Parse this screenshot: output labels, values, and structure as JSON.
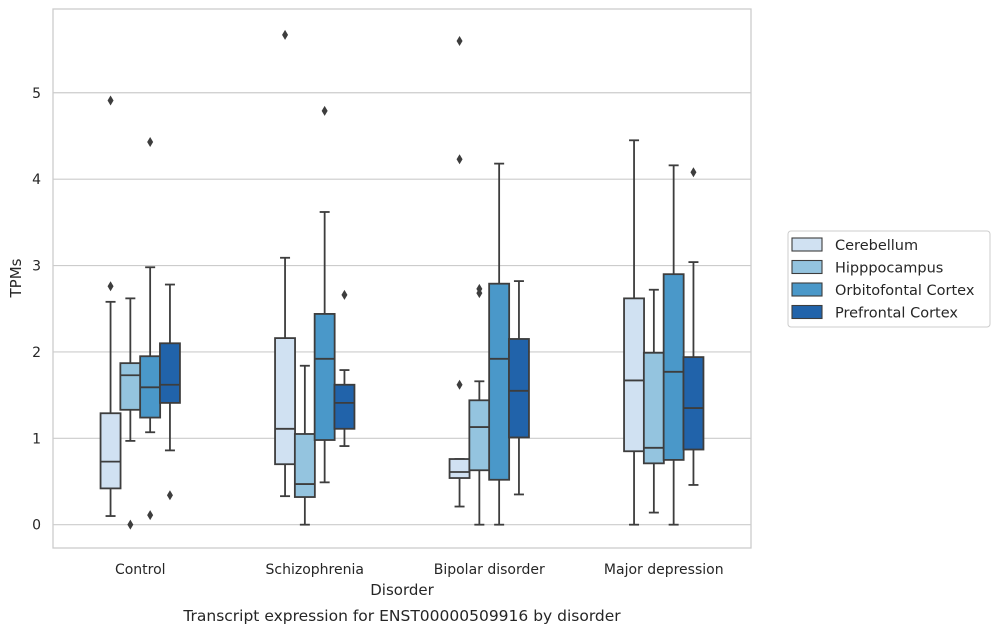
{
  "chart_data": {
    "type": "boxplot",
    "caption": "Transcript expression for ENST00000509916 by disorder",
    "xlabel": "Disorder",
    "ylabel": "TPMs",
    "ylim": [
      -0.27,
      5.97
    ],
    "yticks": [
      0,
      1,
      2,
      3,
      4,
      5
    ],
    "grid": "horizontal",
    "legend_position": "right",
    "categories": [
      "Control",
      "Schizophrenia",
      "Bipolar disorder",
      "Major depression"
    ],
    "series": [
      {
        "name": "Cerebellum",
        "color": "#d0e1f2",
        "boxes": [
          {
            "whislo": 0.1,
            "q1": 0.42,
            "med": 0.73,
            "q3": 1.29,
            "whishi": 2.58,
            "fliers": [
              2.76,
              4.91
            ]
          },
          {
            "whislo": 0.33,
            "q1": 0.7,
            "med": 1.11,
            "q3": 2.16,
            "whishi": 3.09,
            "fliers": [
              5.67
            ]
          },
          {
            "whislo": 0.21,
            "q1": 0.54,
            "med": 0.61,
            "q3": 0.76,
            "whishi": 0.76,
            "fliers": [
              1.62,
              4.23,
              5.6
            ]
          },
          {
            "whislo": 0.0,
            "q1": 0.85,
            "med": 1.67,
            "q3": 2.62,
            "whishi": 4.45,
            "fliers": []
          }
        ]
      },
      {
        "name": "Hipppocampus",
        "color": "#94c4df",
        "boxes": [
          {
            "whislo": 0.97,
            "q1": 1.33,
            "med": 1.73,
            "q3": 1.87,
            "whishi": 2.62,
            "fliers": [
              0.0
            ]
          },
          {
            "whislo": 0.0,
            "q1": 0.32,
            "med": 0.47,
            "q3": 1.05,
            "whishi": 1.84,
            "fliers": []
          },
          {
            "whislo": 0.0,
            "q1": 0.63,
            "med": 1.13,
            "q3": 1.44,
            "whishi": 1.66,
            "fliers": [
              2.68,
              2.73
            ]
          },
          {
            "whislo": 0.14,
            "q1": 0.71,
            "med": 0.89,
            "q3": 1.99,
            "whishi": 2.72,
            "fliers": []
          }
        ]
      },
      {
        "name": "Orbitofontal Cortex",
        "color": "#4a98c9",
        "boxes": [
          {
            "whislo": 1.07,
            "q1": 1.24,
            "med": 1.59,
            "q3": 1.95,
            "whishi": 2.98,
            "fliers": [
              0.11,
              4.43
            ]
          },
          {
            "whislo": 0.49,
            "q1": 0.98,
            "med": 1.92,
            "q3": 2.44,
            "whishi": 3.62,
            "fliers": [
              4.79
            ]
          },
          {
            "whislo": 0.0,
            "q1": 0.52,
            "med": 1.92,
            "q3": 2.79,
            "whishi": 4.18,
            "fliers": []
          },
          {
            "whislo": 0.0,
            "q1": 0.75,
            "med": 1.77,
            "q3": 2.9,
            "whishi": 4.16,
            "fliers": []
          }
        ]
      },
      {
        "name": "Prefrontal Cortex",
        "color": "#2163aa",
        "boxes": [
          {
            "whislo": 0.86,
            "q1": 1.41,
            "med": 1.62,
            "q3": 2.1,
            "whishi": 2.78,
            "fliers": [
              0.34
            ]
          },
          {
            "whislo": 0.91,
            "q1": 1.11,
            "med": 1.41,
            "q3": 1.62,
            "whishi": 1.79,
            "fliers": [
              2.66
            ]
          },
          {
            "whislo": 0.35,
            "q1": 1.01,
            "med": 1.55,
            "q3": 2.15,
            "whishi": 2.82,
            "fliers": []
          },
          {
            "whislo": 0.46,
            "q1": 0.87,
            "med": 1.35,
            "q3": 1.94,
            "whishi": 3.04,
            "fliers": [
              4.08
            ]
          }
        ]
      }
    ]
  }
}
